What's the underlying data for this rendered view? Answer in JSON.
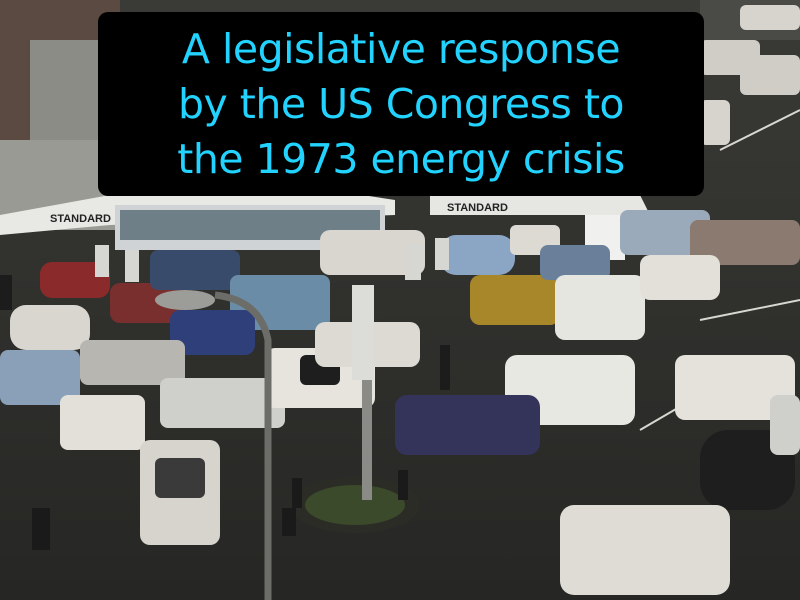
{
  "caption": {
    "text": "A legislative response\nby the US Congress to\nthe 1973 energy crisis",
    "color": "#22d3ff"
  },
  "photo": {
    "station_signs": [
      "STANDARD",
      "STANDARD"
    ],
    "colors": {
      "asphalt": "#2f2f2c",
      "canopy": "#e8e8e4",
      "car_white": "#dcdad2"
    }
  }
}
